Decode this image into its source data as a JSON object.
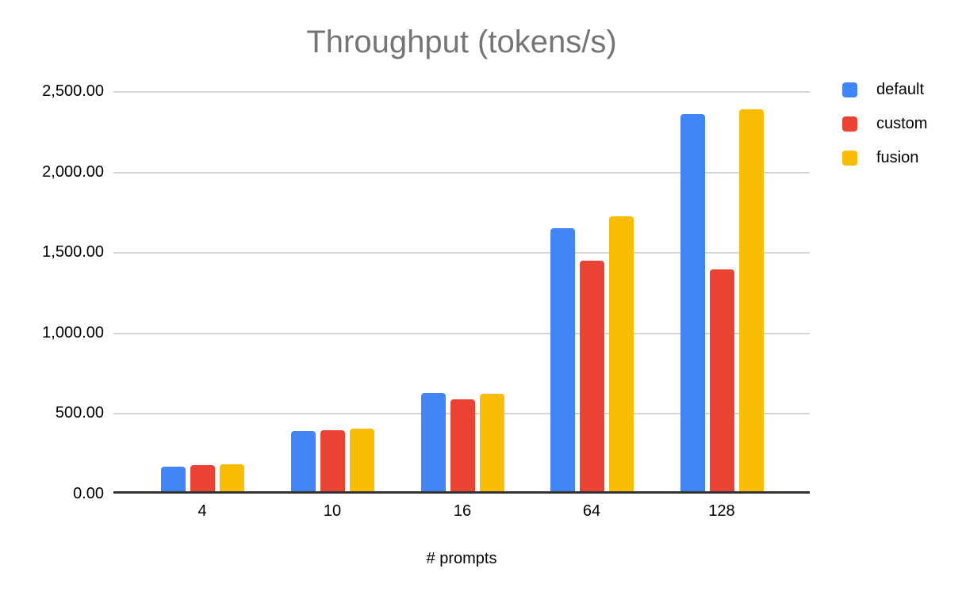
{
  "chart_data": {
    "type": "bar",
    "title": "Throughput (tokens/s)",
    "xlabel": "# prompts",
    "ylabel": "",
    "categories": [
      "4",
      "10",
      "16",
      "64",
      "128"
    ],
    "series": [
      {
        "name": "default",
        "color": "#4285F4",
        "values": [
          155,
          372,
          612,
          1632,
          2344
        ]
      },
      {
        "name": "custom",
        "color": "#EA4335",
        "values": [
          165,
          377,
          572,
          1430,
          1379
        ]
      },
      {
        "name": "fusion",
        "color": "#FBBC04",
        "values": [
          170,
          390,
          605,
          1706,
          2374
        ]
      }
    ],
    "ylim": [
      0,
      2500
    ],
    "ytick_values": [
      0,
      500,
      1000,
      1500,
      2000,
      2500
    ],
    "ytick_labels": [
      "0.00",
      "500.00",
      "1,000.00",
      "1,500.00",
      "2,000.00",
      "2,500.00"
    ],
    "grid": true,
    "legend_position": "top-right",
    "style": {
      "title_color": "#757575",
      "axis_text_color": "#000000",
      "gridline_color": "#d5d5d5",
      "axis_line_color": "#333333",
      "background": "#ffffff"
    }
  }
}
